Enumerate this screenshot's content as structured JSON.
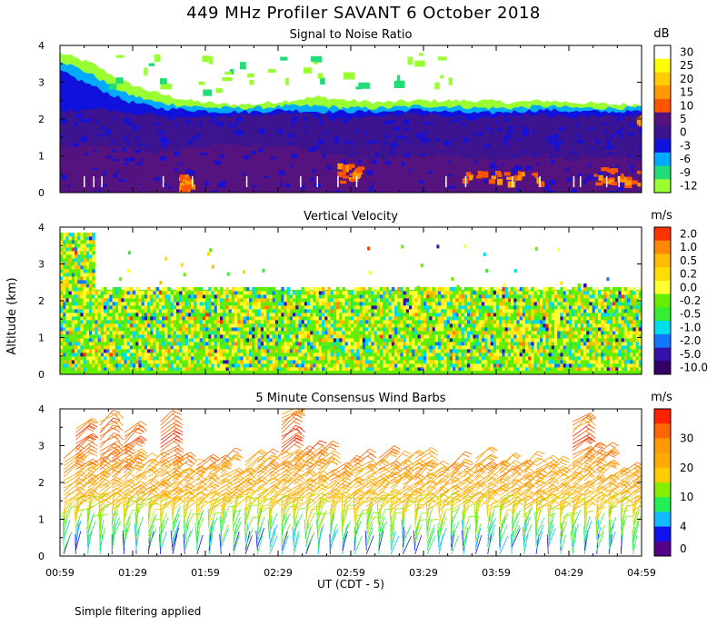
{
  "title": "449 MHz Profiler SAVANT  6 October 2018",
  "footnote": "Simple filtering applied",
  "ylabel": "Altitude (km)",
  "xlabel": "UT  (CDT - 5)",
  "chart_data": [
    {
      "type": "heatmap",
      "title": "Signal to Noise Ratio",
      "unit": "dB",
      "xlabel": "UT  (CDT - 5)",
      "ylabel": "Altitude (km)",
      "x_tick_labels": [
        "00:59",
        "01:29",
        "01:59",
        "02:29",
        "02:59",
        "03:29",
        "03:59",
        "04:29",
        "04:59"
      ],
      "xlim": [
        "00:59",
        "04:59"
      ],
      "y_ticks": [
        0,
        1,
        2,
        3,
        4
      ],
      "ylim": [
        0,
        4
      ],
      "colorbar": {
        "labels": [
          "30",
          "25",
          "20",
          "15",
          "10",
          "5",
          "0",
          "-3",
          "-6",
          "-9",
          "-12"
        ],
        "colors": [
          "#ffffff",
          "#ffff00",
          "#ffcc00",
          "#ff9900",
          "#ff5500",
          "#55137f",
          "#3d1490",
          "#1111dd",
          "#00aaff",
          "#22dd77",
          "#99ff33"
        ]
      },
      "layers": [
        {
          "label": "-12",
          "top_km": [
            3.8,
            3.5,
            3.0,
            2.7,
            2.5,
            2.4,
            2.4,
            2.5,
            2.6,
            2.5,
            2.45,
            2.5,
            2.5,
            2.5,
            2.45,
            2.5,
            2.45,
            2.4,
            2.4
          ]
        },
        {
          "label": "-6",
          "top_km": [
            3.6,
            3.2,
            2.7,
            2.45,
            2.35,
            2.3,
            2.3,
            2.35,
            2.35,
            2.3,
            2.3,
            2.35,
            2.35,
            2.3,
            2.3,
            2.35,
            2.3,
            2.3,
            2.3
          ]
        },
        {
          "label": "-3",
          "top_km": [
            3.3,
            2.9,
            2.5,
            2.3,
            2.25,
            2.2,
            2.2,
            2.25,
            2.2,
            2.2,
            2.2,
            2.25,
            2.2,
            2.15,
            2.2,
            2.25,
            2.2,
            2.2,
            2.2
          ]
        },
        {
          "label": "0",
          "top_km": [
            2.2,
            2.3,
            2.2,
            2.1,
            2.05,
            2.1,
            2.1,
            2.15,
            2.1,
            2.05,
            2.1,
            2.15,
            2.05,
            2.0,
            2.1,
            2.1,
            2.05,
            2.1,
            2.1
          ]
        },
        {
          "label": "5",
          "top_km": [
            1.2,
            1.3,
            1.2,
            1.1,
            1.2,
            1.3,
            1.2,
            1.3,
            1.1,
            1.0,
            0.9,
            1.0,
            1.0,
            0.9,
            0.9,
            1.0,
            0.9,
            1.0,
            0.9
          ]
        }
      ],
      "highlights_10dB": [
        {
          "x0": "01:48",
          "x1": "01:52",
          "y0": 0.1,
          "y1": 0.5
        },
        {
          "x0": "02:53",
          "x1": "03:02",
          "y0": 0.3,
          "y1": 0.8
        },
        {
          "x0": "03:42",
          "x1": "04:17",
          "y0": 0.3,
          "y1": 0.6
        },
        {
          "x0": "04:39",
          "x1": "04:59",
          "y0": 0.25,
          "y1": 0.7
        },
        {
          "x0": "04:57",
          "x1": "04:59",
          "y0": 1.9,
          "y1": 2.1
        }
      ]
    },
    {
      "type": "heatmap",
      "title": "Vertical Velocity",
      "unit": "m/s",
      "xlabel": "UT  (CDT - 5)",
      "ylabel": "Altitude (km)",
      "x_tick_labels": [
        "00:59",
        "01:29",
        "01:59",
        "02:29",
        "02:59",
        "03:29",
        "03:59",
        "04:29",
        "04:59"
      ],
      "xlim": [
        "00:59",
        "04:59"
      ],
      "y_ticks": [
        0,
        1,
        2,
        3,
        4
      ],
      "ylim": [
        0,
        4
      ],
      "data_top_km": 2.3,
      "colorbar": {
        "labels": [
          "2.0",
          "1.0",
          "0.5",
          "0.2",
          "0.0",
          "-0.2",
          "-0.5",
          "-1.0",
          "-2.0",
          "-5.0",
          "-10.0"
        ],
        "colors": [
          "#ff3300",
          "#ff8800",
          "#ffbb00",
          "#ffdd00",
          "#ffff33",
          "#66ee00",
          "#33ee33",
          "#00ddee",
          "#1177ff",
          "#3311aa",
          "#330066"
        ]
      }
    },
    {
      "type": "scatter",
      "title": "5 Minute Consensus Wind Barbs",
      "unit": "m/s",
      "xlabel": "UT  (CDT - 5)",
      "ylabel": "Altitude (km)",
      "x_tick_labels": [
        "00:59",
        "01:29",
        "01:59",
        "02:29",
        "02:59",
        "03:29",
        "03:59",
        "04:29",
        "04:59"
      ],
      "xlim": [
        "00:59",
        "04:59"
      ],
      "y_ticks": [
        0,
        1,
        2,
        3,
        4
      ],
      "ylim": [
        0,
        4
      ],
      "colorbar": {
        "labels": [
          "30",
          "20",
          "10",
          "4",
          "0"
        ],
        "colors": [
          "#ff2200",
          "#ff6600",
          "#ff9900",
          "#ffaa00",
          "#ffcc00",
          "#88ee00",
          "#22ee55",
          "#11bbff",
          "#1111ee",
          "#550088"
        ]
      },
      "speed_profile_km_ms": [
        [
          0.0,
          4
        ],
        [
          0.5,
          8
        ],
        [
          1.0,
          12
        ],
        [
          1.5,
          18
        ],
        [
          2.0,
          20
        ],
        [
          2.5,
          22
        ],
        [
          3.0,
          27
        ],
        [
          3.5,
          24
        ],
        [
          4.0,
          20
        ]
      ]
    }
  ]
}
